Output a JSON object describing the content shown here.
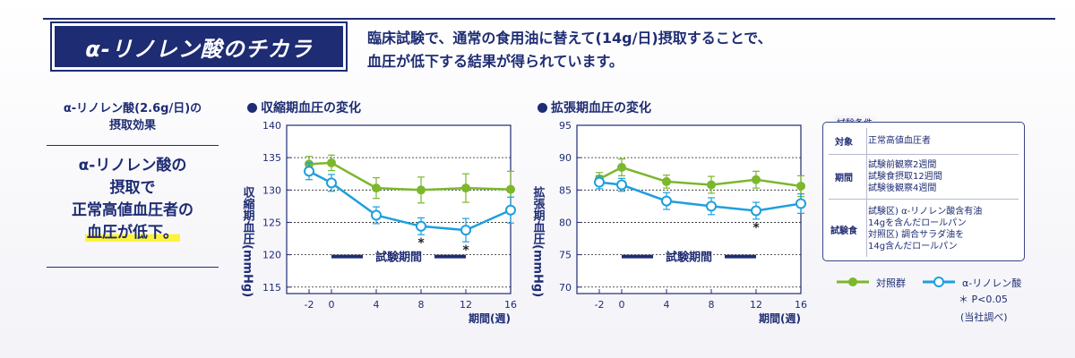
{
  "header": {
    "title": "α-リノレン酸のチカラ",
    "desc_line1": "臨床試験で、通常の食用油に替えて(14g/日)摂取することで、",
    "desc_line2": "血圧が低下する結果が得られています。"
  },
  "side": {
    "caption_line1": "α-リノレン酸(2.6g/日)の",
    "caption_line2": "摂取効果",
    "main_line1": "α-リノレン酸の",
    "main_line2": "摂取で",
    "main_line3": "正常高値血圧者の",
    "main_line4": "血圧が低下。"
  },
  "charts_text": {
    "left_title": "収縮期血圧の変化",
    "right_title": "拡張期血圧の変化",
    "period_label": "試験期間",
    "xlabel": "期間(週)",
    "left_ylabel": "収縮期血圧(mmHg)",
    "right_ylabel": "拡張期血圧(mmHg)",
    "sig_mark": "*"
  },
  "conditions": {
    "caption": "試験条件",
    "rows": [
      {
        "key": "対象",
        "lines": [
          "正常高値血圧者"
        ]
      },
      {
        "key": "期間",
        "lines": [
          "試験前観察2週間",
          "試験食摂取12週間",
          "試験後観察4週間"
        ]
      },
      {
        "key": "試験食",
        "lines": [
          "試験区) α-リノレン酸含有油",
          "14gを含んだロールパン",
          "対照区) 調合サラダ油を",
          "14g含んだロールパン"
        ]
      }
    ]
  },
  "legend": {
    "control": "対照群",
    "ala": "α-リノレン酸",
    "pvalue": "＊ P<0.05",
    "source": "(当社調べ)"
  },
  "colors": {
    "navy": "#1e2c73",
    "control": "#7cb72c",
    "ala": "#1e9fde"
  },
  "chart_data": [
    {
      "type": "line",
      "title": "収縮期血圧の変化",
      "xlabel": "期間(週)",
      "ylabel": "収縮期血圧(mmHg)",
      "x": [
        -2,
        0,
        4,
        8,
        12,
        16
      ],
      "xticks": [
        "-2",
        "0",
        "4",
        "8",
        "12",
        "16"
      ],
      "ylim": [
        114,
        140
      ],
      "yticks": [
        115,
        120,
        125,
        130,
        135,
        140
      ],
      "period": [
        0,
        12
      ],
      "series": [
        {
          "name": "対照群",
          "values": [
            134,
            134.2,
            130.3,
            130,
            130.3,
            130.1
          ],
          "err": [
            1.2,
            1.2,
            1.6,
            2.0,
            2.2,
            2.8
          ]
        },
        {
          "name": "α-リノレン酸",
          "values": [
            132.9,
            131.1,
            126.1,
            124.4,
            123.8,
            126.9
          ],
          "err": [
            1.3,
            1.3,
            1.3,
            1.3,
            1.8,
            2.0
          ],
          "sig": [
            8,
            12
          ]
        }
      ]
    },
    {
      "type": "line",
      "title": "拡張期血圧の変化",
      "xlabel": "期間(週)",
      "ylabel": "拡張期血圧(mmHg)",
      "x": [
        -2,
        0,
        4,
        8,
        12,
        16
      ],
      "xticks": [
        "-2",
        "0",
        "4",
        "8",
        "12",
        "16"
      ],
      "ylim": [
        69,
        95
      ],
      "yticks": [
        70,
        75,
        80,
        85,
        90,
        95
      ],
      "period": [
        0,
        12
      ],
      "series": [
        {
          "name": "対照群",
          "values": [
            86.7,
            88.5,
            86.3,
            85.8,
            86.6,
            85.6
          ],
          "err": [
            1.0,
            1.3,
            1.0,
            1.3,
            1.3,
            1.6
          ]
        },
        {
          "name": "α-リノレン酸",
          "values": [
            86.2,
            85.8,
            83.3,
            82.5,
            81.8,
            82.9
          ],
          "err": [
            1.0,
            1.0,
            1.3,
            1.3,
            1.3,
            1.5
          ],
          "sig": [
            12
          ]
        }
      ]
    }
  ]
}
